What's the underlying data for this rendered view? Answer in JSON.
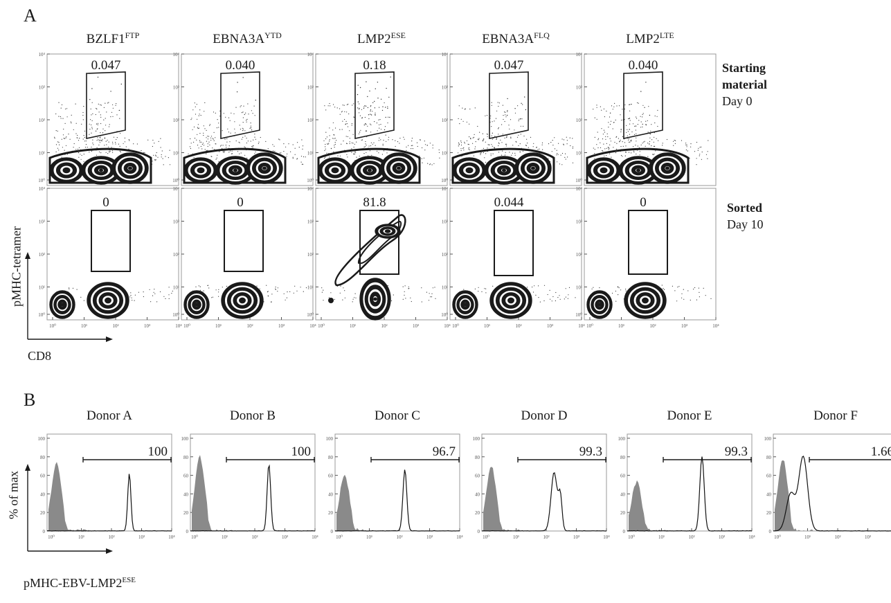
{
  "panel_a": {
    "letter": "A",
    "columns": [
      {
        "base": "BZLF1",
        "sup": "FTP"
      },
      {
        "base": "EBNA3A",
        "sup": "YTD"
      },
      {
        "base": "LMP2",
        "sup": "ESE"
      },
      {
        "base": "EBNA3A",
        "sup": "FLQ"
      },
      {
        "base": "LMP2",
        "sup": "LTE"
      }
    ],
    "row_labels": [
      {
        "bold": [
          "Starting",
          "material"
        ],
        "normal": "Day 0"
      },
      {
        "bold": [
          "Sorted"
        ],
        "normal": "Day 10"
      }
    ],
    "gate_values": [
      [
        "0.047",
        "0.040",
        "0.18",
        "0.047",
        "0.040"
      ],
      [
        "0",
        "0",
        "81.8",
        "0.044",
        "0"
      ]
    ],
    "y_axis_label": "pMHC-tetramer",
    "x_axis_label": "CD8",
    "tick_labels": [
      "10⁰",
      "10¹",
      "10²",
      "10³",
      "10⁴"
    ]
  },
  "panel_b": {
    "letter": "B",
    "donors": [
      "Donor A",
      "Donor B",
      "Donor C",
      "Donor D",
      "Donor E",
      "Donor F"
    ],
    "gate_values": [
      "100",
      "100",
      "96.7",
      "99.3",
      "99.3",
      "1.66"
    ],
    "y_axis_label": "% of max",
    "x_axis_label": {
      "base": "pMHC-EBV-LMP2",
      "sup": "ESE"
    },
    "y_ticks": [
      "0",
      "20",
      "40",
      "60",
      "80",
      "100"
    ],
    "x_ticks": [
      "10⁰",
      "10¹",
      "10²",
      "10³",
      "10⁴"
    ],
    "colors": {
      "filled_histogram": "#8a8a8a",
      "outline": "#111111"
    }
  }
}
